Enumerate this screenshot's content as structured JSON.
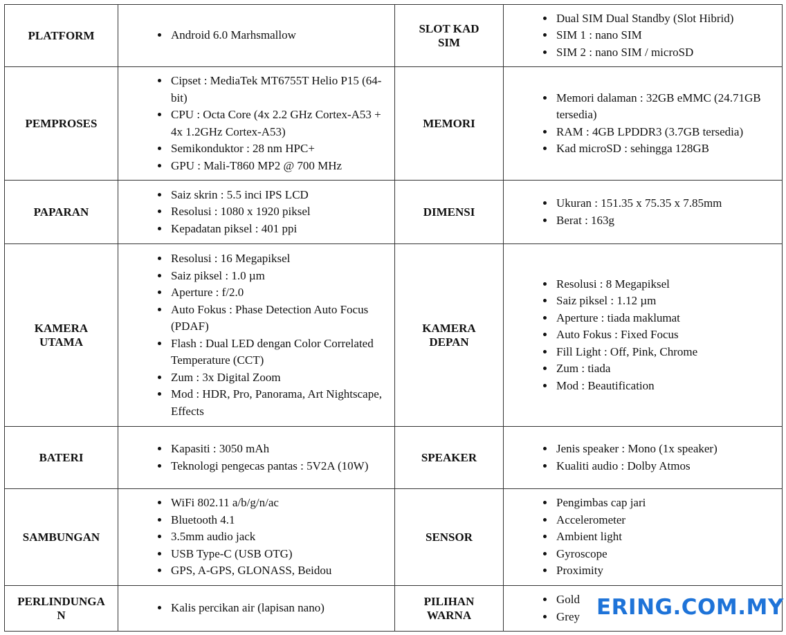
{
  "table": {
    "rows": [
      {
        "left_label": "PLATFORM",
        "left_items": [
          "Android 6.0 Marhsmallow"
        ],
        "right_label": "SLOT KAD SIM",
        "right_items": [
          "Dual SIM Dual Standby (Slot Hibrid)",
          "SIM 1 : nano SIM",
          "SIM 2 : nano SIM / microSD"
        ]
      },
      {
        "left_label": "PEMPROSES",
        "left_items": [
          "Cipset : MediaTek MT6755T Helio P15 (64-bit)",
          "CPU : Octa Core (4x 2.2 GHz Cortex-A53 + 4x 1.2GHz Cortex-A53)",
          "Semikonduktor : 28 nm HPC+",
          "GPU : Mali-T860 MP2 @ 700 MHz"
        ],
        "right_label": "MEMORI",
        "right_items": [
          "Memori dalaman : 32GB eMMC (24.71GB tersedia)",
          "RAM : 4GB LPDDR3  (3.7GB tersedia)",
          "Kad microSD : sehingga 128GB"
        ]
      },
      {
        "left_label": "PAPARAN",
        "left_items": [
          "Saiz skrin : 5.5 inci IPS LCD",
          "Resolusi : 1080 x 1920 piksel",
          "Kepadatan piksel : 401 ppi"
        ],
        "right_label": "DIMENSI",
        "right_items": [
          "Ukuran : 151.35 x 75.35 x 7.85mm",
          "Berat : 163g"
        ]
      },
      {
        "left_label": "KAMERA UTAMA",
        "left_items": [
          "Resolusi : 16 Megapiksel",
          "Saiz piksel : 1.0 µm",
          "Aperture : f/2.0",
          "Auto Fokus : Phase Detection Auto Focus (PDAF)",
          "Flash : Dual LED dengan Color Correlated Temperature (CCT)",
          "Zum : 3x Digital Zoom",
          "Mod : HDR, Pro, Panorama, Art Nightscape, Effects"
        ],
        "right_label": "KAMERA DEPAN",
        "right_items": [
          "Resolusi : 8 Megapiksel",
          "Saiz piksel : 1.12 µm",
          "Aperture : tiada maklumat",
          "Auto Fokus : Fixed Focus",
          "Fill Light : Off, Pink, Chrome",
          "Zum : tiada",
          "Mod : Beautification"
        ]
      },
      {
        "left_label": "BATERI",
        "left_items": [
          "Kapasiti : 3050 mAh",
          "Teknologi pengecas pantas : 5V2A (10W)"
        ],
        "right_label": "SPEAKER",
        "right_items": [
          "Jenis speaker : Mono (1x speaker)",
          "Kualiti audio : Dolby Atmos"
        ]
      },
      {
        "left_label": "SAMBUNGAN",
        "left_items": [
          "WiFi 802.11 a/b/g/n/ac",
          "Bluetooth 4.1",
          "3.5mm audio jack",
          "USB Type-C (USB OTG)",
          "GPS, A-GPS, GLONASS,  Beidou"
        ],
        "right_label": "SENSOR",
        "right_items": [
          "Pengimbas cap jari",
          "Accelerometer",
          "Ambient light",
          "Gyroscope",
          "Proximity"
        ]
      },
      {
        "left_label": "PERLINDUNGAN",
        "left_items": [
          "Kalis percikan air (lapisan nano)"
        ],
        "right_label": "PILIHAN WARNA",
        "right_items": [
          "Gold",
          "Grey"
        ]
      }
    ]
  },
  "watermark": "ERING.COM.MY"
}
